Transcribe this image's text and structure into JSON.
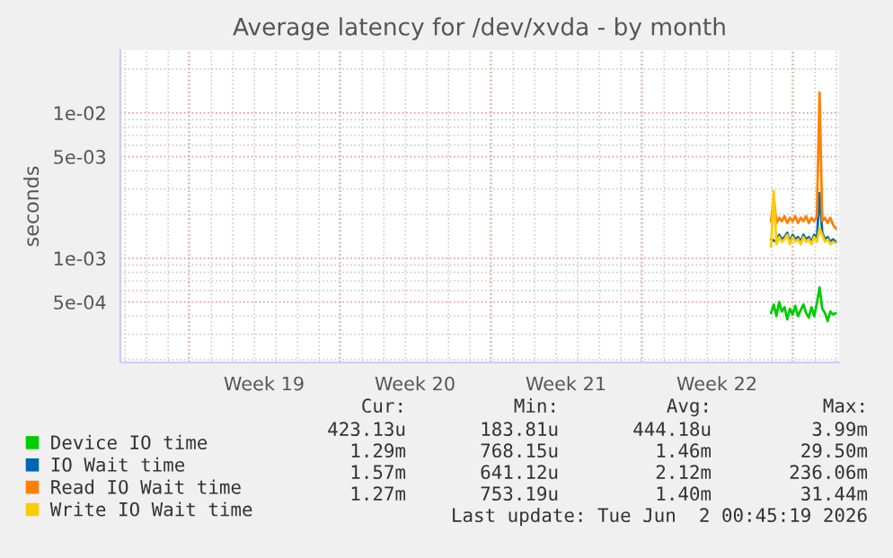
{
  "chart_data": {
    "type": "line",
    "title": "Average latency for /dev/xvda - by month",
    "ylabel": "seconds",
    "x": [
      "2026-05-29T23:00",
      "2026-05-30T02:00",
      "2026-05-30T05:00",
      "2026-05-30T08:00",
      "2026-05-30T11:00",
      "2026-05-30T14:00",
      "2026-05-30T17:00",
      "2026-05-30T20:00",
      "2026-05-30T23:00",
      "2026-05-31T02:00",
      "2026-05-31T05:00",
      "2026-05-31T08:00",
      "2026-05-31T11:00",
      "2026-05-31T14:00",
      "2026-05-31T17:00",
      "2026-05-31T20:00",
      "2026-05-31T23:00",
      "2026-06-01T02:00",
      "2026-06-01T05:00",
      "2026-06-01T08:00",
      "2026-06-01T11:00",
      "2026-06-01T14:00",
      "2026-06-01T17:00",
      "2026-06-01T20:00",
      "2026-06-01T23:00"
    ],
    "series": [
      {
        "name": "Device IO time",
        "color": "#00cc00",
        "values": [
          0.00042,
          0.00048,
          0.0004,
          0.0005,
          0.00043,
          0.00046,
          0.00038,
          0.00045,
          0.00041,
          0.00047,
          0.0004,
          0.00044,
          0.00048,
          0.00042,
          0.00039,
          0.00046,
          0.0004,
          0.00049,
          0.00063,
          0.00045,
          0.00042,
          0.00037,
          0.00043,
          0.00041,
          0.00042
        ]
      },
      {
        "name": "IO Wait time",
        "color": "#0066b3",
        "values": [
          0.00135,
          null,
          0.0013,
          0.00145,
          0.00135,
          0.0014,
          0.0015,
          0.0013,
          0.00145,
          0.00135,
          0.0014,
          0.0013,
          0.00145,
          0.00135,
          0.0014,
          0.0013,
          0.00145,
          0.00135,
          0.0028,
          0.0015,
          0.00135,
          0.0014,
          0.0013,
          0.00135,
          0.0013
        ]
      },
      {
        "name": "Read IO Wait time",
        "color": "#ff8000",
        "values": [
          0.0018,
          0.0026,
          0.00175,
          0.0019,
          0.0018,
          0.00195,
          0.00175,
          0.0019,
          0.0018,
          0.00195,
          0.00175,
          0.0019,
          0.0018,
          0.00195,
          0.00175,
          0.0019,
          0.0018,
          0.00195,
          0.0138,
          0.0018,
          0.0019,
          0.00175,
          0.0019,
          0.0017,
          0.0016
        ]
      },
      {
        "name": "Write IO Wait time",
        "color": "#ffcc00",
        "values": [
          0.0012,
          0.0029,
          0.00125,
          0.0014,
          0.0013,
          0.00135,
          0.00145,
          0.00125,
          0.0014,
          0.0013,
          0.00135,
          0.00125,
          0.0014,
          0.0013,
          0.00135,
          0.00125,
          0.0014,
          0.0013,
          0.0016,
          0.00145,
          0.0013,
          0.00135,
          0.00125,
          0.0013,
          0.00127
        ]
      }
    ],
    "log": "y",
    "ylim": [
      0.000192,
      0.027
    ],
    "yticks": [
      {
        "value": 0.01,
        "label": "1e-02"
      },
      {
        "value": 0.005,
        "label": "5e-03"
      },
      {
        "value": 0.001,
        "label": "1e-03"
      },
      {
        "value": 0.0005,
        "label": "5e-04"
      }
    ],
    "xlim": [
      "2026-04-29T18:45",
      "2026-06-02T02:45"
    ],
    "xticks": [
      {
        "value": "2026-05-02T22:45",
        "label": null
      },
      {
        "value": "2026-05-06T10:45",
        "label": "Week 19"
      },
      {
        "value": "2026-05-09T22:45",
        "label": null
      },
      {
        "value": "2026-05-13T10:45",
        "label": "Week 20"
      },
      {
        "value": "2026-05-16T22:45",
        "label": null
      },
      {
        "value": "2026-05-20T10:45",
        "label": "Week 21"
      },
      {
        "value": "2026-05-23T22:45",
        "label": null
      },
      {
        "value": "2026-05-27T10:45",
        "label": "Week 22"
      },
      {
        "value": "2026-05-30T22:45",
        "label": null
      }
    ],
    "grid": true,
    "legend": "bottom",
    "marker": "none",
    "line_style": "solid",
    "annotations": [
      "Cur:",
      "Min:",
      "Avg:",
      "Max:",
      "423.13u",
      "183.81u",
      "444.18u",
      "3.99m",
      "1.29m",
      "768.15u",
      "1.46m",
      "29.50m",
      "1.57m",
      "641.12u",
      "2.12m",
      "236.06m",
      "1.27m",
      "753.19u",
      "1.40m",
      "31.44m",
      "Last update: Tue Jun  2 00:45:19 2026"
    ]
  }
}
